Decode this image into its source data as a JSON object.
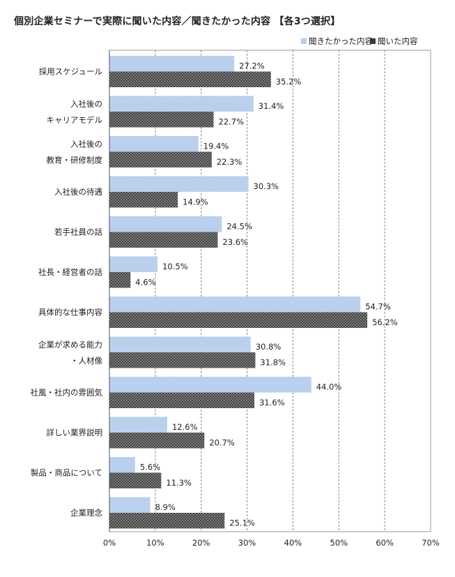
{
  "title": "個別企業セミナーで実際に聞いた内容／聞きたかった内容 【各3つ選択】",
  "colors": {
    "wanted": "#b4cdec",
    "heard": "#3a3a3a",
    "grid": "#888888"
  },
  "chart_data": {
    "type": "bar",
    "orientation": "horizontal",
    "title": "個別企業セミナーで実際に聞いた内容／聞きたかった内容 【各3つ選択】",
    "categories": [
      [
        "採用スケジュール"
      ],
      [
        "入社後の",
        "キャリアモデル"
      ],
      [
        "入社後の",
        "教育・研修制度"
      ],
      [
        "入社後の待遇"
      ],
      [
        "若手社員の話"
      ],
      [
        "社長・経営者の話"
      ],
      [
        "具体的な仕事内容"
      ],
      [
        "企業が求める能力",
        "・人材像"
      ],
      [
        "社風・社内の雰囲気"
      ],
      [
        "詳しい業界説明"
      ],
      [
        "製品・商品について"
      ],
      [
        "企業理念"
      ]
    ],
    "series": [
      {
        "name": "聞きたかった内容",
        "values": [
          27.2,
          31.4,
          19.4,
          30.3,
          24.5,
          10.5,
          54.7,
          30.8,
          44.0,
          12.6,
          5.6,
          8.9
        ],
        "labels": [
          "27.2%",
          "31.4%",
          "19.4%",
          "30.3%",
          "24.5%",
          "10.5%",
          "54.7%",
          "30.8%",
          "44.0%",
          "12.6%",
          "5.6%",
          "8.9%"
        ]
      },
      {
        "name": "聞いた内容",
        "values": [
          35.2,
          22.7,
          22.3,
          14.9,
          23.6,
          4.6,
          56.2,
          31.8,
          31.6,
          20.7,
          11.3,
          25.1
        ],
        "labels": [
          "35.2%",
          "22.7%",
          "22.3%",
          "14.9%",
          "23.6%",
          "4.6%",
          "56.2%",
          "31.8%",
          "31.6%",
          "20.7%",
          "11.3%",
          "25.1%"
        ]
      }
    ],
    "xlim": [
      0,
      70
    ],
    "xticks": [
      0,
      10,
      20,
      30,
      40,
      50,
      60,
      70
    ],
    "xtick_labels": [
      "0%",
      "10%",
      "20%",
      "30%",
      "40%",
      "50%",
      "60%",
      "70%"
    ],
    "grid": "vertical-dashed",
    "legend": "top-right"
  }
}
